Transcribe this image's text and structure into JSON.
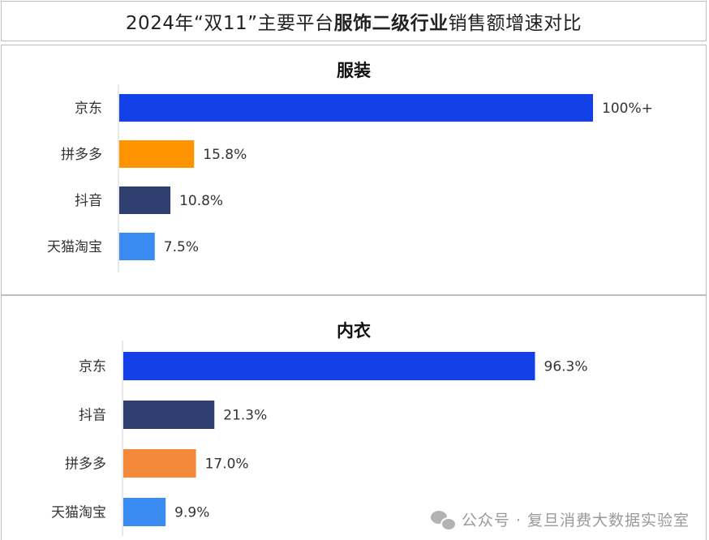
{
  "title": {
    "pre": "2024年“双11”主要平台",
    "highlight": "服饰二级行业",
    "post": "销售额增速对比"
  },
  "chart_data": [
    {
      "type": "bar",
      "orientation": "horizontal",
      "title": "服装",
      "categories": [
        "京东",
        "拼多多",
        "抖音",
        "天猫淘宝"
      ],
      "values": [
        100,
        15.8,
        10.8,
        7.5
      ],
      "labels": [
        "100%+",
        "15.8%",
        "10.8%",
        "7.5%"
      ],
      "colors": [
        "#1440E8",
        "#FF9300",
        "#2E3E6E",
        "#3A8BF2"
      ],
      "xlim": [
        0,
        100
      ]
    },
    {
      "type": "bar",
      "orientation": "horizontal",
      "title": "内衣",
      "categories": [
        "京东",
        "抖音",
        "拼多多",
        "天猫淘宝"
      ],
      "values": [
        96.3,
        21.3,
        17.0,
        9.9
      ],
      "labels": [
        "96.3%",
        "21.3%",
        "17.0%",
        "9.9%"
      ],
      "colors": [
        "#1440E8",
        "#2E3E6E",
        "#F4883A",
        "#3A8BF2"
      ],
      "xlim": [
        0,
        100
      ]
    }
  ],
  "watermark": {
    "text": "公众号 · 复旦消费大数据实验室",
    "icon": "wechat-icon"
  }
}
